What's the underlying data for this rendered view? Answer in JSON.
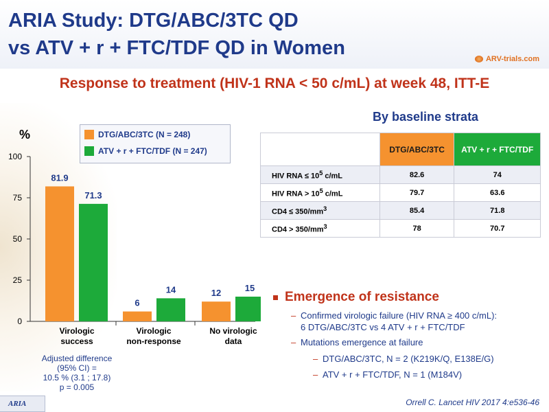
{
  "header": {
    "title_line1": "ARIA Study: DTG/ABC/3TC QD",
    "title_line2": "vs ATV + r + FTC/TDF QD in Women",
    "logo_text": "ARV-trials.com"
  },
  "subtitle": "Response to treatment (HIV-1 RNA < 50 c/mL) at week 48, ITT-E",
  "chart_data": {
    "type": "bar",
    "y_unit": "%",
    "ylim": [
      0,
      100
    ],
    "yticks": [
      "0",
      "25",
      "50",
      "75",
      "100"
    ],
    "categories": [
      "Virologic success",
      "Virologic non-response",
      "No virologic data"
    ],
    "category_lines": [
      [
        "Virologic",
        "success"
      ],
      [
        "Virologic",
        "non-response"
      ],
      [
        "No virologic",
        "data"
      ]
    ],
    "series": [
      {
        "name": "DTG/ABC/3TC (N = 248)",
        "values": [
          81.9,
          6,
          12
        ],
        "labels": [
          "81.9",
          "6",
          "12"
        ],
        "color": "#f5922f"
      },
      {
        "name": "ATV + r + FTC/TDF (N = 247)",
        "values": [
          71.3,
          14,
          15
        ],
        "labels": [
          "71.3",
          "14",
          "15"
        ],
        "color": "#1daa3a"
      }
    ],
    "legend": "top",
    "grid": false
  },
  "adjusted": {
    "line1": "Adjusted difference",
    "line2": "(95% CI) =",
    "line3": "10.5 % (3.1 ; 17.8)",
    "line4": "p = 0.005"
  },
  "strata": {
    "title": "By baseline strata",
    "col1": "DTG/ABC/3TC",
    "col2": "ATV + r + FTC/TDF",
    "rows": [
      {
        "pre": "HIV RNA ≤ 10",
        "sup": "5",
        "post": " c/mL",
        "v1": "82.6",
        "v2": "74"
      },
      {
        "pre": "HIV RNA > 10",
        "sup": "5",
        "post": " c/mL",
        "v1": "79.7",
        "v2": "63.6"
      },
      {
        "pre": "CD4 ≤ 350/mm",
        "sup": "3",
        "post": "",
        "v1": "85.4",
        "v2": "71.8"
      },
      {
        "pre": "CD4 > 350/mm",
        "sup": "3",
        "post": "",
        "v1": "78",
        "v2": "70.7"
      }
    ]
  },
  "resistance": {
    "heading": "Emergence of resistance",
    "item1_line1": "Confirmed virologic failure (HIV RNA ≥ 400 c/mL):",
    "item1_line2": "6 DTG/ABC/3TC vs 4 ATV + r + FTC/TDF",
    "item2": "Mutations emergence at failure",
    "sub1": "DTG/ABC/3TC, N = 2 (K219K/Q, E138E/G)",
    "sub2": "ATV + r + FTC/TDF, N = 1 (M184V)",
    "dash": "–"
  },
  "reference": "Orrell C. Lancet HIV 2017 4:e536-46",
  "footer_tag": "ARIA",
  "colors": {
    "title": "#1f3a8a",
    "accent": "#c0331a",
    "dtg": "#f5922f",
    "atv": "#1daa3a"
  }
}
